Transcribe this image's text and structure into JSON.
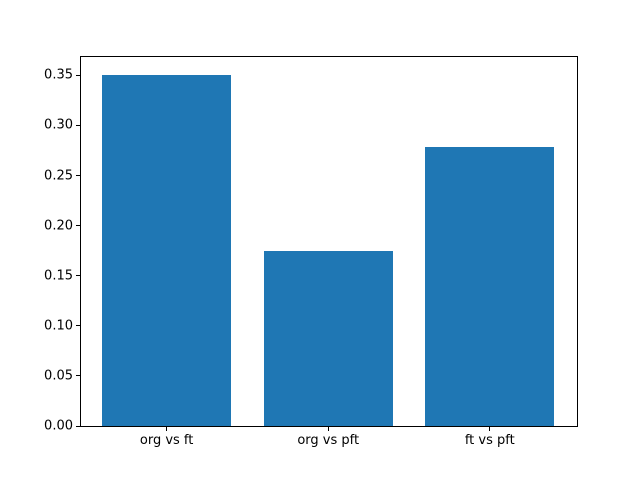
{
  "chart_data": {
    "type": "bar",
    "categories": [
      "org vs ft",
      "org vs pft",
      "ft vs pft"
    ],
    "values": [
      0.35,
      0.175,
      0.278
    ],
    "title": "",
    "xlabel": "",
    "ylabel": "",
    "ylim": [
      0,
      0.3683
    ],
    "xlim": [
      -0.53,
      2.54
    ],
    "yticks": [
      0.0,
      0.05,
      0.1,
      0.15,
      0.2,
      0.25,
      0.3,
      0.35
    ],
    "ytick_decimals": 2,
    "bar_width": 0.8,
    "bar_color": "#1f77b4",
    "spine_color": "#000000",
    "background_color": "#ffffff",
    "grid": false,
    "legend": "none"
  }
}
